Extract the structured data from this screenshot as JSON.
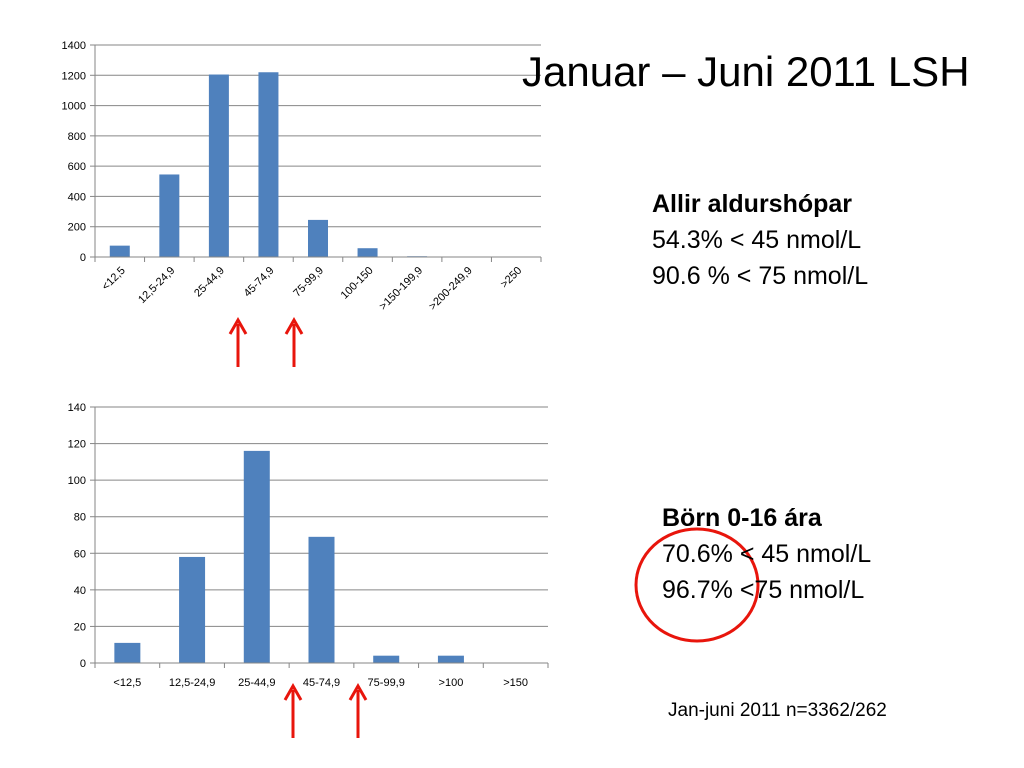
{
  "title": "Januar – Juni 2011 LSH",
  "stats": [
    {
      "heading": "Allir aldurshópar",
      "line1": "54.3% < 45 nmol/L",
      "line2": "90.6 % < 75 nmol/L"
    },
    {
      "heading": "Börn 0-16 ára",
      "line1": "70.6% < 45 nmol/L",
      "line2": "96.7% <75 nmol/L"
    }
  ],
  "footnote": "Jan-juni 2011 n=3362/262",
  "colors": {
    "bar": "#4F81BD",
    "arrow": "#E8150C",
    "circle": "#E8150C",
    "grid": "#868686"
  },
  "chart_data": [
    {
      "type": "bar",
      "title": "",
      "xlabel": "",
      "ylabel": "",
      "categories": [
        "<12,5",
        "12,5-24,9",
        "25-44,9",
        "45-74,9",
        "75-99,9",
        "100-150",
        ">150-199,9",
        ">200-249,9",
        ">250"
      ],
      "values": [
        75,
        545,
        1205,
        1220,
        245,
        58,
        5,
        0,
        0
      ],
      "ylim": [
        0,
        1400
      ],
      "yticks": [
        0,
        200,
        400,
        600,
        800,
        1000,
        1200,
        1400
      ],
      "grid": true,
      "rotated_labels": true
    },
    {
      "type": "bar",
      "title": "",
      "xlabel": "",
      "ylabel": "",
      "categories": [
        "<12,5",
        "12,5-24,9",
        "25-44,9",
        "45-74,9",
        "75-99,9",
        ">100",
        ">150"
      ],
      "values": [
        11,
        58,
        116,
        69,
        4,
        4,
        0
      ],
      "ylim": [
        0,
        140
      ],
      "yticks": [
        0,
        20,
        40,
        60,
        80,
        100,
        120,
        140
      ],
      "grid": true,
      "rotated_labels": false
    }
  ]
}
